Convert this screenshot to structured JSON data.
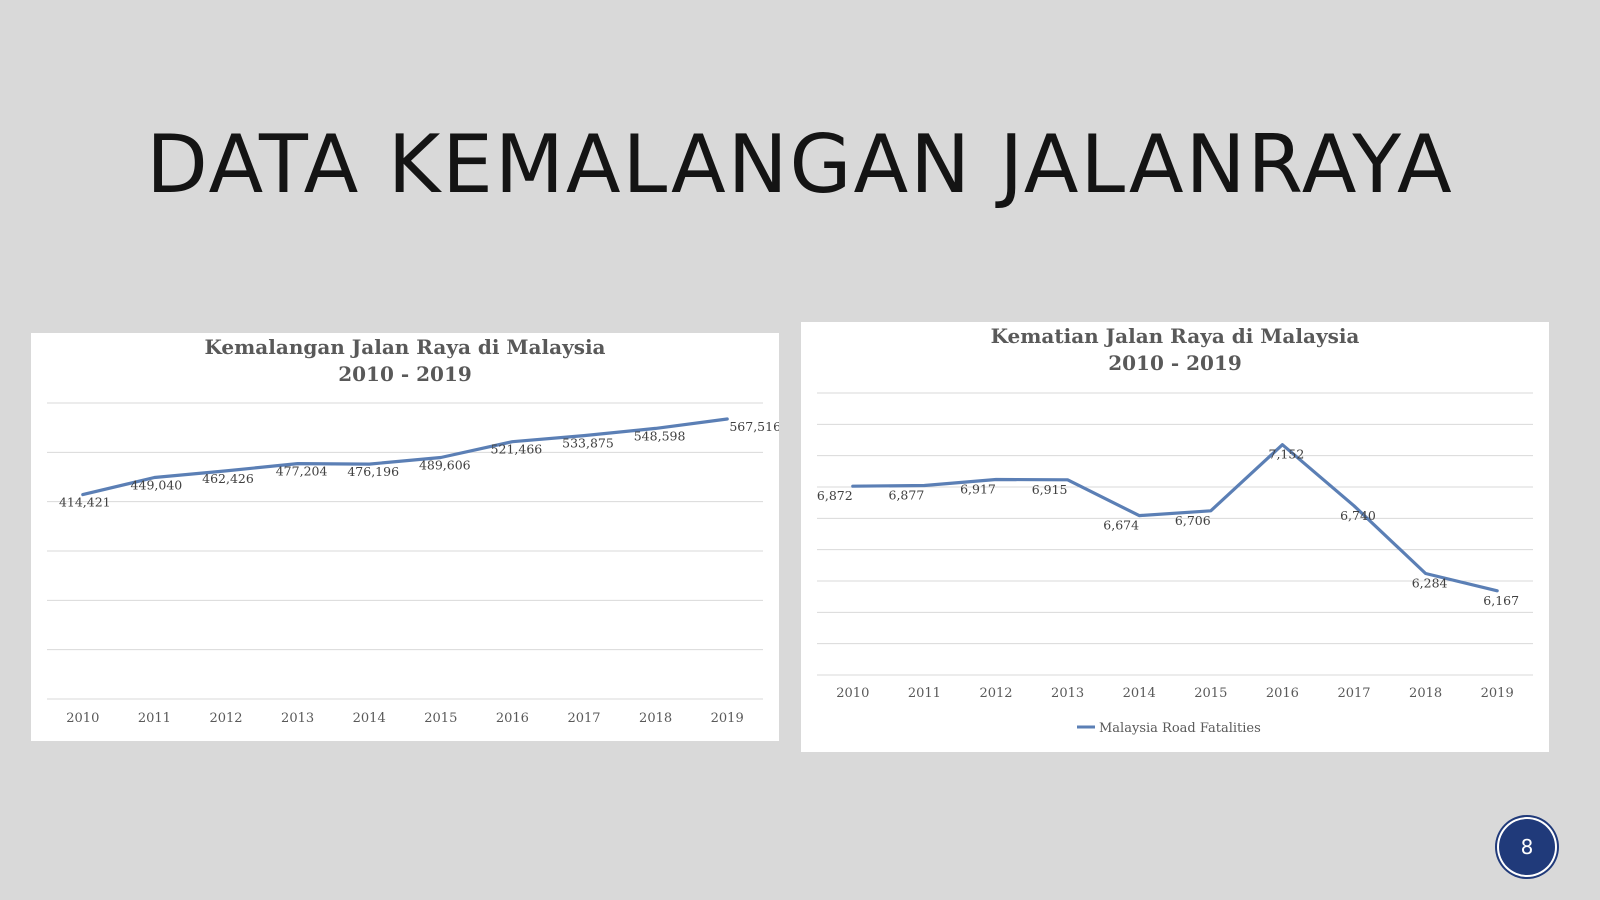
{
  "slide": {
    "title": "DATA KEMALANGAN JALANRAYA",
    "page_number": "8"
  },
  "colors": {
    "series": "#5b7fb5",
    "badge": "#203a7a",
    "background": "#d9d9d9"
  },
  "chart_data": [
    {
      "type": "line",
      "title": "Kemalangan Jalan Raya di Malaysia",
      "subtitle": "2010 - 2019",
      "categories": [
        "2010",
        "2011",
        "2012",
        "2013",
        "2014",
        "2015",
        "2016",
        "2017",
        "2018",
        "2019"
      ],
      "series": [
        {
          "values": [
            414421,
            449040,
            462426,
            477204,
            476196,
            489606,
            521466,
            533875,
            548598,
            567516
          ],
          "labels": [
            "414,421",
            "449,040",
            "462,426",
            "477,204",
            "476,196",
            "489,606",
            "521,466",
            "533,875",
            "548,598",
            "567,516"
          ]
        }
      ],
      "ylim": [
        0,
        600000
      ],
      "grid": true,
      "legend": "none"
    },
    {
      "type": "line",
      "title": "Kematian Jalan Raya di Malaysia",
      "subtitle": "2010 - 2019",
      "categories": [
        "2010",
        "2011",
        "2012",
        "2013",
        "2014",
        "2015",
        "2016",
        "2017",
        "2018",
        "2019"
      ],
      "series": [
        {
          "name": "Malaysia Road Fatalities",
          "values": [
            6872,
            6877,
            6917,
            6915,
            6674,
            6706,
            7152,
            6740,
            6284,
            6167
          ],
          "labels": [
            "6,872",
            "6,877",
            "6,917",
            "6,915",
            "6,674",
            "6,706",
            "7,152",
            "6,740",
            "6,284",
            "6,167"
          ]
        }
      ],
      "ylim": [
        5600,
        7500
      ],
      "grid": true,
      "legend": "bottom"
    }
  ]
}
